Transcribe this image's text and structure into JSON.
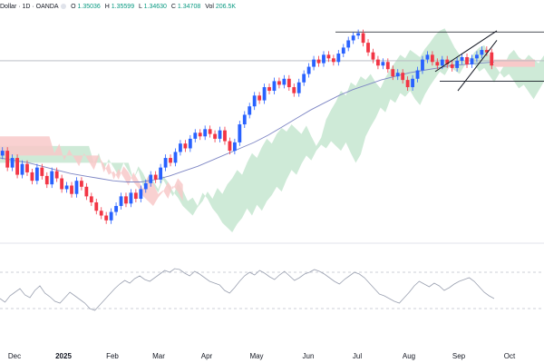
{
  "legend": {
    "symbol_fragment": "Dollar · 1D · OANDA",
    "o_label": "O",
    "o_val": "1.35036",
    "h_label": "H",
    "h_val": "1.35599",
    "l_label": "L",
    "l_val": "1.34630",
    "c_label": "C",
    "c_val": "1.34708",
    "vol_label": "Vol",
    "vol_val": "206.5K"
  },
  "colors": {
    "up": "#2962ff",
    "down": "#f23645",
    "ma": "#7e86c4",
    "cloud_bull": "#c5e6d0",
    "cloud_bear": "#f8c9c9",
    "rsi": "#9aa0b0",
    "pattern": "#131722"
  },
  "chart_data": [
    {
      "type": "candlestick",
      "note": "Daily price candles with moving average and Ichimoku cloud",
      "x_ticks": [
        "Dec",
        "2025",
        "Feb",
        "Mar",
        "Apr",
        "May",
        "Jun",
        "Jul",
        "Aug",
        "Sep",
        "Oct"
      ],
      "ohlc_closes": [
        1.276,
        1.262,
        1.27,
        1.256,
        1.265,
        1.258,
        1.251,
        1.262,
        1.255,
        1.248,
        1.259,
        1.253,
        1.244,
        1.247,
        1.24,
        1.251,
        1.246,
        1.238,
        1.233,
        1.226,
        1.222,
        1.218,
        1.225,
        1.23,
        1.238,
        1.232,
        1.241,
        1.236,
        1.244,
        1.249,
        1.256,
        1.252,
        1.262,
        1.27,
        1.266,
        1.275,
        1.282,
        1.278,
        1.286,
        1.291,
        1.288,
        1.294,
        1.29,
        1.286,
        1.293,
        1.284,
        1.276,
        1.283,
        1.298,
        1.306,
        1.313,
        1.322,
        1.318,
        1.329,
        1.326,
        1.334,
        1.331,
        1.336,
        1.329,
        1.324,
        1.333,
        1.34,
        1.346,
        1.352,
        1.349,
        1.356,
        1.353,
        1.35,
        1.357,
        1.362,
        1.368,
        1.372,
        1.374,
        1.366,
        1.358,
        1.352,
        1.347,
        1.35,
        1.344,
        1.338,
        1.341,
        1.335,
        1.329,
        1.336,
        1.343,
        1.352,
        1.356,
        1.35,
        1.347,
        1.352,
        1.348,
        1.345,
        1.351,
        1.354,
        1.348,
        1.353,
        1.356,
        1.36,
        1.358,
        1.347
      ],
      "moving_average": [
        1.27,
        1.268,
        1.266,
        1.263,
        1.26,
        1.257,
        1.255,
        1.253,
        1.251,
        1.25,
        1.25,
        1.252,
        1.255,
        1.259,
        1.263,
        1.268,
        1.273,
        1.278,
        1.283,
        1.289,
        1.296,
        1.303,
        1.31,
        1.316,
        1.322,
        1.327,
        1.331,
        1.335,
        1.338,
        1.341,
        1.343,
        1.345,
        1.347,
        1.348,
        1.349,
        1.35
      ],
      "horizontal_lines": [
        1.375,
        1.351,
        1.334
      ],
      "wedge": {
        "upper": [
          [
            1.342,
            1.376
          ]
        ],
        "lower": [
          [
            1.326,
            1.368
          ]
        ]
      }
    },
    {
      "type": "line",
      "series": [
        {
          "values": [
            41,
            37,
            44,
            48,
            52,
            45,
            42,
            50,
            55,
            47,
            43,
            38,
            36,
            42,
            48,
            44,
            40,
            36,
            30,
            28,
            34,
            40,
            46,
            52,
            57,
            61,
            58,
            63,
            66,
            62,
            60,
            64,
            68,
            72,
            70,
            74,
            73,
            69,
            66,
            71,
            68,
            64,
            60,
            58,
            56,
            50,
            47,
            53,
            60,
            66,
            70,
            67,
            72,
            69,
            65,
            62,
            67,
            71,
            66,
            61,
            64,
            68,
            70,
            73,
            71,
            68,
            64,
            60,
            57,
            62,
            66,
            70,
            68,
            64,
            58,
            52,
            46,
            44,
            41,
            38,
            36,
            42,
            48,
            55,
            60,
            57,
            54,
            58,
            55,
            50,
            53,
            57,
            60,
            62,
            64,
            60,
            54,
            48,
            44,
            41
          ]
        }
      ],
      "levels": [
        70,
        30
      ]
    }
  ]
}
